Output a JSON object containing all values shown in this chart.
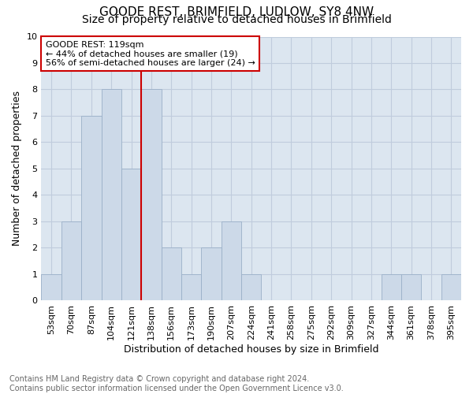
{
  "title1": "GOODE REST, BRIMFIELD, LUDLOW, SY8 4NW",
  "title2": "Size of property relative to detached houses in Brimfield",
  "xlabel": "Distribution of detached houses by size in Brimfield",
  "ylabel": "Number of detached properties",
  "categories": [
    "53sqm",
    "70sqm",
    "87sqm",
    "104sqm",
    "121sqm",
    "138sqm",
    "156sqm",
    "173sqm",
    "190sqm",
    "207sqm",
    "224sqm",
    "241sqm",
    "258sqm",
    "275sqm",
    "292sqm",
    "309sqm",
    "327sqm",
    "344sqm",
    "361sqm",
    "378sqm",
    "395sqm"
  ],
  "values": [
    1,
    3,
    7,
    8,
    5,
    8,
    2,
    1,
    2,
    3,
    1,
    0,
    0,
    0,
    0,
    0,
    0,
    1,
    1,
    0,
    1
  ],
  "bar_color": "#ccd9e8",
  "bar_edge_color": "#9ab0c8",
  "property_index": 4,
  "property_label": "GOODE REST: 119sqm",
  "annotation_line1": "← 44% of detached houses are smaller (19)",
  "annotation_line2": "56% of semi-detached houses are larger (24) →",
  "red_line_color": "#cc0000",
  "annotation_box_color": "#ffffff",
  "annotation_box_edge": "#cc0000",
  "grid_color": "#c0ccdd",
  "background_color": "#dce6f0",
  "ylim": [
    0,
    10
  ],
  "yticks": [
    0,
    1,
    2,
    3,
    4,
    5,
    6,
    7,
    8,
    9,
    10
  ],
  "footnote": "Contains HM Land Registry data © Crown copyright and database right 2024.\nContains public sector information licensed under the Open Government Licence v3.0.",
  "title1_fontsize": 11,
  "title2_fontsize": 10,
  "xlabel_fontsize": 9,
  "ylabel_fontsize": 9,
  "tick_fontsize": 8,
  "annotation_fontsize": 8,
  "footnote_fontsize": 7
}
